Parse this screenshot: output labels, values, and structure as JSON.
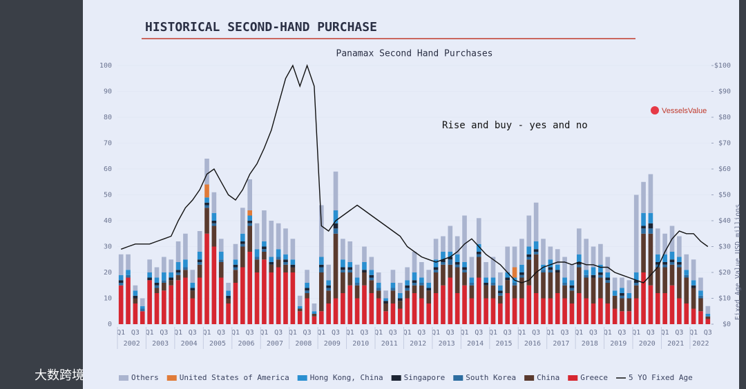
{
  "slide_title": "HISTORICAL SECOND-HAND PURCHASE",
  "logo": "VesselsValue",
  "watermark": "大数跨境",
  "chart_data": {
    "type": "stacked-bar-line",
    "title": "Panamax Second Hand Purchases",
    "annotation": "Rise and buy - yes and no",
    "y2_label": "Fixed Age Value USD millions",
    "categories": [
      "Q1",
      null,
      "Q3",
      null,
      "Q1",
      null,
      "Q3",
      null,
      "Q1",
      null,
      "Q3",
      null,
      "Q1",
      null,
      "Q3",
      null,
      "Q1",
      null,
      "Q3",
      null,
      "Q1",
      null,
      "Q3",
      null,
      "Q1",
      null,
      "Q3",
      null,
      "Q1",
      null,
      "Q3",
      null,
      "Q1",
      null,
      "Q3",
      null,
      "Q1",
      null,
      "Q3",
      null,
      "Q1",
      null,
      "Q3",
      null,
      "Q1",
      null,
      "Q3",
      null,
      "Q1",
      null,
      "Q3",
      null,
      "Q1",
      null,
      "Q3",
      null,
      "Q1",
      null,
      "Q3",
      null,
      "Q1",
      null,
      "Q3",
      null,
      "Q1",
      null,
      "Q3",
      null,
      "Q1",
      null,
      "Q3",
      null,
      "Q1",
      null,
      "Q3",
      null,
      "Q1",
      null,
      "Q3",
      null,
      "Q1",
      null,
      "Q3"
    ],
    "years": [
      "2002",
      "2003",
      "2004",
      "2005",
      "2006",
      "2007",
      "2008",
      "2009",
      "2010",
      "2011",
      "2012",
      "2013",
      "2014",
      "2015",
      "2016",
      "2017",
      "2018",
      "2019",
      "2020",
      "2021",
      "2022"
    ],
    "ylim": [
      0,
      100
    ],
    "yticks": [
      0,
      10,
      20,
      30,
      40,
      50,
      60,
      70,
      80,
      90,
      100
    ],
    "y2lim": [
      0,
      100
    ],
    "y2ticks": [
      {
        "value": 0,
        "label": "$0"
      },
      {
        "value": 10,
        "label": "$10"
      },
      {
        "value": 20,
        "label": "$20"
      },
      {
        "value": 30,
        "label": "$30"
      },
      {
        "value": 40,
        "label": "$40"
      },
      {
        "value": 50,
        "label": "$50"
      },
      {
        "value": 60,
        "label": "$60"
      },
      {
        "value": 70,
        "label": "$70"
      },
      {
        "value": 80,
        "label": "$80"
      },
      {
        "value": 90,
        "label": "$90"
      },
      {
        "value": 100,
        "label": "$100"
      }
    ],
    "series": [
      {
        "name": "Others",
        "color": "#aab4cf",
        "values": [
          8,
          6,
          2,
          3,
          5,
          4,
          6,
          5,
          8,
          10,
          5,
          8,
          10,
          8,
          5,
          3,
          6,
          10,
          12,
          10,
          12,
          14,
          10,
          10,
          8,
          4,
          5,
          3,
          20,
          6,
          15,
          8,
          8,
          5,
          6,
          5,
          4,
          3,
          5,
          4,
          5,
          8,
          6,
          5,
          8,
          6,
          10,
          7,
          18,
          8,
          10,
          6,
          8,
          5,
          10,
          8,
          10,
          12,
          15,
          10,
          5,
          6,
          8,
          6,
          10,
          12,
          8,
          8,
          6,
          5,
          4,
          5,
          30,
          12,
          15,
          10,
          8,
          10,
          8,
          6,
          8,
          5,
          3
        ]
      },
      {
        "name": "United States of America",
        "color": "#e07b39",
        "values": [
          0,
          0,
          0,
          0,
          0,
          0,
          0,
          0,
          0,
          0,
          0,
          0,
          5,
          0,
          0,
          0,
          0,
          0,
          2,
          0,
          0,
          0,
          0,
          0,
          0,
          0,
          0,
          0,
          0,
          0,
          0,
          0,
          0,
          0,
          0,
          0,
          0,
          0,
          0,
          0,
          0,
          0,
          0,
          0,
          0,
          0,
          0,
          0,
          0,
          0,
          0,
          0,
          0,
          0,
          0,
          4,
          0,
          0,
          0,
          0,
          0,
          0,
          0,
          0,
          0,
          0,
          0,
          0,
          0,
          0,
          0,
          0,
          0,
          0,
          0,
          0,
          0,
          0,
          0,
          0,
          0,
          0,
          0
        ]
      },
      {
        "name": "Hong Kong, China",
        "color": "#2a8fd0",
        "values": [
          2,
          2,
          2,
          1,
          2,
          2,
          3,
          2,
          3,
          3,
          2,
          3,
          2,
          3,
          3,
          2,
          2,
          3,
          2,
          3,
          2,
          2,
          3,
          2,
          2,
          1,
          2,
          1,
          3,
          2,
          5,
          3,
          2,
          2,
          3,
          2,
          2,
          1,
          2,
          2,
          2,
          3,
          2,
          2,
          3,
          3,
          2,
          3,
          2,
          2,
          3,
          2,
          2,
          2,
          2,
          2,
          3,
          3,
          3,
          2,
          3,
          2,
          2,
          2,
          3,
          2,
          3,
          3,
          2,
          2,
          2,
          2,
          3,
          5,
          4,
          3,
          3,
          3,
          2,
          2,
          2,
          2,
          1
        ]
      },
      {
        "name": "Singapore",
        "color": "#1c2433",
        "values": [
          1,
          0,
          1,
          0,
          1,
          1,
          0,
          1,
          1,
          0,
          1,
          1,
          1,
          1,
          0,
          1,
          1,
          1,
          1,
          0,
          1,
          1,
          0,
          1,
          1,
          0,
          1,
          0,
          1,
          1,
          2,
          1,
          1,
          0,
          1,
          1,
          0,
          1,
          0,
          1,
          1,
          1,
          0,
          1,
          1,
          1,
          1,
          1,
          1,
          0,
          1,
          1,
          0,
          1,
          1,
          0,
          1,
          1,
          1,
          0,
          1,
          1,
          0,
          1,
          1,
          0,
          1,
          1,
          1,
          0,
          1,
          0,
          1,
          1,
          2,
          1,
          1,
          1,
          1,
          0,
          1,
          0,
          0
        ]
      },
      {
        "name": "South Korea",
        "color": "#2d6da0",
        "values": [
          1,
          1,
          0,
          1,
          0,
          1,
          1,
          0,
          1,
          1,
          0,
          1,
          1,
          1,
          1,
          0,
          1,
          1,
          1,
          1,
          1,
          0,
          1,
          1,
          0,
          0,
          1,
          0,
          2,
          1,
          2,
          1,
          1,
          1,
          0,
          1,
          1,
          0,
          1,
          0,
          1,
          1,
          1,
          0,
          1,
          1,
          2,
          1,
          1,
          1,
          1,
          0,
          1,
          1,
          0,
          1,
          1,
          1,
          1,
          1,
          1,
          0,
          1,
          1,
          1,
          1,
          0,
          1,
          1,
          0,
          1,
          0,
          1,
          2,
          2,
          1,
          1,
          1,
          1,
          1,
          0,
          1,
          0
        ]
      },
      {
        "name": "China",
        "color": "#5a3a2e",
        "values": [
          0,
          0,
          2,
          0,
          0,
          2,
          3,
          2,
          2,
          3,
          3,
          5,
          10,
          8,
          6,
          2,
          5,
          8,
          10,
          5,
          3,
          3,
          3,
          3,
          2,
          1,
          2,
          1,
          15,
          5,
          25,
          8,
          5,
          5,
          5,
          5,
          3,
          3,
          5,
          3,
          3,
          3,
          5,
          5,
          8,
          8,
          5,
          10,
          5,
          5,
          8,
          5,
          5,
          3,
          5,
          5,
          8,
          10,
          15,
          10,
          10,
          8,
          5,
          5,
          10,
          8,
          10,
          8,
          8,
          5,
          5,
          5,
          5,
          15,
          20,
          10,
          10,
          8,
          12,
          10,
          8,
          5,
          1
        ]
      },
      {
        "name": "Greece",
        "color": "#d62630",
        "values": [
          15,
          18,
          8,
          5,
          17,
          12,
          13,
          15,
          17,
          18,
          10,
          18,
          35,
          30,
          18,
          8,
          16,
          22,
          28,
          20,
          25,
          20,
          22,
          20,
          20,
          5,
          10,
          3,
          5,
          8,
          10,
          12,
          15,
          10,
          15,
          12,
          10,
          5,
          8,
          6,
          10,
          12,
          10,
          8,
          12,
          15,
          18,
          12,
          15,
          10,
          18,
          10,
          10,
          8,
          12,
          10,
          10,
          15,
          12,
          10,
          10,
          12,
          10,
          8,
          12,
          10,
          8,
          10,
          8,
          6,
          5,
          5,
          10,
          20,
          15,
          12,
          12,
          15,
          10,
          8,
          6,
          5,
          2
        ]
      },
      {
        "name": "5 YO Fixed Age",
        "color": "#111111",
        "axis": "y2",
        "values": [
          29,
          30,
          31,
          31,
          31,
          32,
          33,
          34,
          40,
          45,
          48,
          52,
          58,
          60,
          55,
          50,
          48,
          52,
          58,
          62,
          68,
          75,
          85,
          95,
          100,
          92,
          100,
          92,
          38,
          36,
          40,
          42,
          44,
          46,
          44,
          42,
          40,
          38,
          36,
          34,
          30,
          28,
          26,
          25,
          24,
          25,
          26,
          28,
          31,
          33,
          30,
          27,
          25,
          23,
          20,
          17,
          16,
          17,
          20,
          22,
          23,
          24,
          24,
          23,
          24,
          23,
          23,
          22,
          22,
          20,
          19,
          18,
          17,
          16,
          19,
          22,
          28,
          33,
          36,
          35,
          35,
          32,
          30
        ]
      }
    ]
  }
}
